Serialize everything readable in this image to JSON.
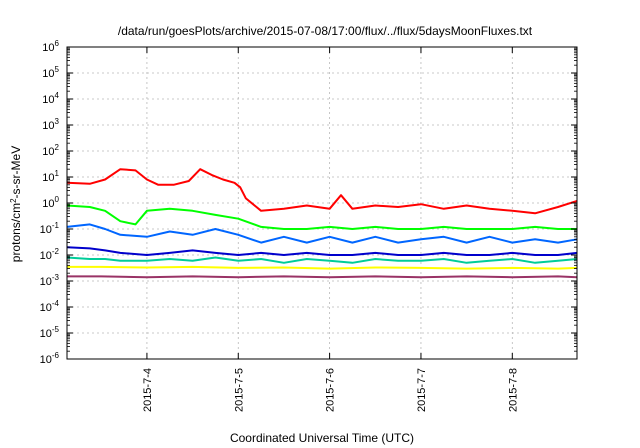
{
  "chart_data": {
    "type": "line",
    "title": "/data/run/goesPlots/archive/2015-07-08/17:00/flux/../flux/5daysMoonFluxes.txt",
    "xlabel": "Coordinated Universal Time (UTC)",
    "ylabel": {
      "base": "protons/cm",
      "sup": "2",
      "rest": "-s-sr-MeV"
    },
    "x_range": [
      "2015-07-03T03:00",
      "2015-07-08T17:00"
    ],
    "x_ticks": [
      "2015-7-4",
      "2015-7-5",
      "2015-7-6",
      "2015-7-7",
      "2015-7-8"
    ],
    "y_scale": "log",
    "ylim": [
      1e-06,
      1000000.0
    ],
    "y_ticks": [
      {
        "base": "10",
        "exp": "-6"
      },
      {
        "base": "10",
        "exp": "-5"
      },
      {
        "base": "10",
        "exp": "-4"
      },
      {
        "base": "10",
        "exp": "-3"
      },
      {
        "base": "10",
        "exp": "-2"
      },
      {
        "base": "10",
        "exp": "-1"
      },
      {
        "base": "10",
        "exp": "0"
      },
      {
        "base": "10",
        "exp": "1"
      },
      {
        "base": "10",
        "exp": "2"
      },
      {
        "base": "10",
        "exp": "3"
      },
      {
        "base": "10",
        "exp": "4"
      },
      {
        "base": "10",
        "exp": "5"
      },
      {
        "base": "10",
        "exp": "6"
      }
    ],
    "grid": true,
    "series": [
      {
        "color": "#ff0000",
        "x": [
          "2015-07-03T03:00",
          "2015-07-03T09:00",
          "2015-07-03T13:00",
          "2015-07-03T17:00",
          "2015-07-03T21:00",
          "2015-07-04T00:00",
          "2015-07-04T03:00",
          "2015-07-04T07:00",
          "2015-07-04T11:00",
          "2015-07-04T14:00",
          "2015-07-04T17:00",
          "2015-07-04T20:00",
          "2015-07-04T23:00",
          "2015-07-05T00:30",
          "2015-07-05T02:00",
          "2015-07-05T06:00",
          "2015-07-05T12:00",
          "2015-07-05T18:00",
          "2015-07-06T00:00",
          "2015-07-06T03:00",
          "2015-07-06T06:00",
          "2015-07-06T12:00",
          "2015-07-06T18:00",
          "2015-07-07T00:00",
          "2015-07-07T06:00",
          "2015-07-07T12:00",
          "2015-07-07T18:00",
          "2015-07-08T00:00",
          "2015-07-08T06:00",
          "2015-07-08T12:00",
          "2015-07-08T17:00"
        ],
        "y": [
          6,
          5.5,
          8,
          20,
          18,
          8,
          5,
          5,
          7,
          20,
          12,
          8,
          6,
          4,
          1.5,
          0.5,
          0.6,
          0.8,
          0.6,
          2,
          0.6,
          0.8,
          0.7,
          0.9,
          0.6,
          0.8,
          0.6,
          0.5,
          0.4,
          0.7,
          1.2
        ]
      },
      {
        "color": "#00ff00",
        "x": [
          "2015-07-03T03:00",
          "2015-07-03T09:00",
          "2015-07-03T13:00",
          "2015-07-03T17:00",
          "2015-07-03T21:00",
          "2015-07-04T00:00",
          "2015-07-04T06:00",
          "2015-07-04T12:00",
          "2015-07-04T18:00",
          "2015-07-05T00:00",
          "2015-07-05T06:00",
          "2015-07-05T12:00",
          "2015-07-05T18:00",
          "2015-07-06T00:00",
          "2015-07-06T06:00",
          "2015-07-06T12:00",
          "2015-07-06T18:00",
          "2015-07-07T00:00",
          "2015-07-07T06:00",
          "2015-07-07T12:00",
          "2015-07-07T18:00",
          "2015-07-08T00:00",
          "2015-07-08T06:00",
          "2015-07-08T12:00",
          "2015-07-08T17:00"
        ],
        "y": [
          0.8,
          0.7,
          0.5,
          0.2,
          0.15,
          0.5,
          0.6,
          0.5,
          0.35,
          0.25,
          0.12,
          0.1,
          0.1,
          0.12,
          0.1,
          0.12,
          0.1,
          0.1,
          0.12,
          0.1,
          0.1,
          0.1,
          0.12,
          0.1,
          0.1
        ]
      },
      {
        "color": "#0066ff",
        "x": [
          "2015-07-03T03:00",
          "2015-07-03T09:00",
          "2015-07-03T13:00",
          "2015-07-03T17:00",
          "2015-07-04T00:00",
          "2015-07-04T06:00",
          "2015-07-04T12:00",
          "2015-07-04T18:00",
          "2015-07-05T00:00",
          "2015-07-05T06:00",
          "2015-07-05T12:00",
          "2015-07-05T18:00",
          "2015-07-06T00:00",
          "2015-07-06T06:00",
          "2015-07-06T12:00",
          "2015-07-06T18:00",
          "2015-07-07T00:00",
          "2015-07-07T06:00",
          "2015-07-07T12:00",
          "2015-07-07T18:00",
          "2015-07-08T00:00",
          "2015-07-08T06:00",
          "2015-07-08T12:00",
          "2015-07-08T17:00"
        ],
        "y": [
          0.12,
          0.15,
          0.1,
          0.06,
          0.05,
          0.08,
          0.06,
          0.1,
          0.06,
          0.03,
          0.05,
          0.03,
          0.05,
          0.03,
          0.05,
          0.03,
          0.04,
          0.05,
          0.03,
          0.05,
          0.03,
          0.04,
          0.03,
          0.04
        ]
      },
      {
        "color": "#0000cc",
        "x": [
          "2015-07-03T03:00",
          "2015-07-03T09:00",
          "2015-07-03T13:00",
          "2015-07-03T17:00",
          "2015-07-04T00:00",
          "2015-07-04T06:00",
          "2015-07-04T12:00",
          "2015-07-04T18:00",
          "2015-07-05T00:00",
          "2015-07-05T06:00",
          "2015-07-05T12:00",
          "2015-07-05T18:00",
          "2015-07-06T00:00",
          "2015-07-06T06:00",
          "2015-07-06T12:00",
          "2015-07-06T18:00",
          "2015-07-07T00:00",
          "2015-07-07T06:00",
          "2015-07-07T12:00",
          "2015-07-07T18:00",
          "2015-07-08T00:00",
          "2015-07-08T06:00",
          "2015-07-08T12:00",
          "2015-07-08T17:00"
        ],
        "y": [
          0.02,
          0.018,
          0.015,
          0.012,
          0.01,
          0.012,
          0.015,
          0.012,
          0.01,
          0.012,
          0.01,
          0.012,
          0.01,
          0.01,
          0.012,
          0.01,
          0.01,
          0.012,
          0.01,
          0.01,
          0.012,
          0.01,
          0.01,
          0.012
        ]
      },
      {
        "color": "#00cc99",
        "x": [
          "2015-07-03T03:00",
          "2015-07-03T09:00",
          "2015-07-03T13:00",
          "2015-07-03T17:00",
          "2015-07-04T00:00",
          "2015-07-04T06:00",
          "2015-07-04T12:00",
          "2015-07-04T18:00",
          "2015-07-05T00:00",
          "2015-07-05T06:00",
          "2015-07-05T12:00",
          "2015-07-05T18:00",
          "2015-07-06T00:00",
          "2015-07-06T06:00",
          "2015-07-06T12:00",
          "2015-07-06T18:00",
          "2015-07-07T00:00",
          "2015-07-07T06:00",
          "2015-07-07T12:00",
          "2015-07-07T18:00",
          "2015-07-08T00:00",
          "2015-07-08T06:00",
          "2015-07-08T12:00",
          "2015-07-08T17:00"
        ],
        "y": [
          0.008,
          0.007,
          0.007,
          0.006,
          0.006,
          0.007,
          0.006,
          0.008,
          0.006,
          0.007,
          0.005,
          0.007,
          0.006,
          0.005,
          0.007,
          0.006,
          0.006,
          0.007,
          0.005,
          0.006,
          0.007,
          0.005,
          0.006,
          0.007
        ]
      },
      {
        "color": "#ffff00",
        "x": [
          "2015-07-03T03:00",
          "2015-07-03T12:00",
          "2015-07-04T00:00",
          "2015-07-04T12:00",
          "2015-07-05T00:00",
          "2015-07-05T12:00",
          "2015-07-06T00:00",
          "2015-07-06T12:00",
          "2015-07-07T00:00",
          "2015-07-07T12:00",
          "2015-07-08T00:00",
          "2015-07-08T12:00",
          "2015-07-08T17:00"
        ],
        "y": [
          0.0035,
          0.0035,
          0.0033,
          0.0035,
          0.0032,
          0.0033,
          0.003,
          0.0033,
          0.0032,
          0.003,
          0.0032,
          0.003,
          0.0032
        ]
      },
      {
        "color": "#993366",
        "x": [
          "2015-07-03T03:00",
          "2015-07-03T12:00",
          "2015-07-04T00:00",
          "2015-07-04T12:00",
          "2015-07-05T00:00",
          "2015-07-05T12:00",
          "2015-07-06T00:00",
          "2015-07-06T12:00",
          "2015-07-07T00:00",
          "2015-07-07T12:00",
          "2015-07-08T00:00",
          "2015-07-08T12:00",
          "2015-07-08T17:00"
        ],
        "y": [
          0.0015,
          0.0015,
          0.0014,
          0.0015,
          0.0014,
          0.0015,
          0.0014,
          0.0015,
          0.0014,
          0.0015,
          0.0014,
          0.0015,
          0.0014
        ]
      }
    ]
  }
}
